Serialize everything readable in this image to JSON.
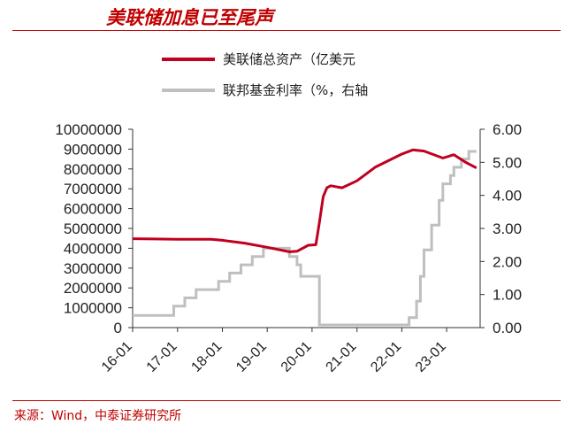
{
  "header": {
    "title": "美联储加息已至尾声"
  },
  "footer": {
    "source": "来源：Wind，中泰证券研究所"
  },
  "colors": {
    "assets": "#c00020",
    "rate": "#bfbfbf",
    "accent": "#c00000"
  },
  "chart_data": {
    "type": "line",
    "dual_axis": true,
    "legend_position": "top",
    "grid": false,
    "x_tick_labels": [
      "16-01",
      "17-01",
      "18-01",
      "19-01",
      "20-01",
      "21-01",
      "22-01",
      "23-01"
    ],
    "y_left": {
      "ylim": [
        0,
        10000000
      ],
      "tick_labels": [
        "0",
        "1000000",
        "2000000",
        "3000000",
        "4000000",
        "5000000",
        "6000000",
        "7000000",
        "8000000",
        "9000000",
        "10000000"
      ]
    },
    "y_right": {
      "ylim": [
        0,
        6
      ],
      "tick_labels": [
        "0.00",
        "1.00",
        "2.00",
        "3.00",
        "4.00",
        "5.00",
        "6.00"
      ]
    },
    "series": [
      {
        "name": "美联储总资产（亿美元",
        "axis": "left",
        "x": [
          "2016-01",
          "2016-07",
          "2017-01",
          "2017-07",
          "2017-10",
          "2018-01",
          "2018-07",
          "2019-01",
          "2019-07",
          "2019-09",
          "2019-12",
          "2020-02",
          "2020-03",
          "2020-04",
          "2020-05",
          "2020-06",
          "2020-09",
          "2021-01",
          "2021-06",
          "2022-01",
          "2022-04",
          "2022-07",
          "2022-12",
          "2023-03",
          "2023-06",
          "2023-09"
        ],
        "values": [
          4480000,
          4470000,
          4450000,
          4450000,
          4450000,
          4400000,
          4260000,
          4050000,
          3820000,
          3850000,
          4150000,
          4180000,
          5300000,
          6600000,
          7050000,
          7150000,
          7050000,
          7400000,
          8100000,
          8750000,
          8960000,
          8900000,
          8550000,
          8720000,
          8350000,
          8050000
        ]
      },
      {
        "name": "联邦基金利率（%，右轴",
        "axis": "right",
        "x": [
          "2016-01",
          "2016-12",
          "2016-12",
          "2017-03",
          "2017-03",
          "2017-06",
          "2017-06",
          "2017-12",
          "2017-12",
          "2018-03",
          "2018-03",
          "2018-06",
          "2018-06",
          "2018-09",
          "2018-09",
          "2018-12",
          "2018-12",
          "2019-07",
          "2019-07",
          "2019-09",
          "2019-09",
          "2019-10",
          "2019-10",
          "2020-03",
          "2020-03",
          "2022-03",
          "2022-03",
          "2022-05",
          "2022-05",
          "2022-06",
          "2022-06",
          "2022-07",
          "2022-07",
          "2022-09",
          "2022-09",
          "2022-11",
          "2022-11",
          "2022-12",
          "2022-12",
          "2023-02",
          "2023-02",
          "2023-03",
          "2023-03",
          "2023-05",
          "2023-05",
          "2023-07",
          "2023-07",
          "2023-09"
        ],
        "values": [
          0.37,
          0.37,
          0.65,
          0.65,
          0.9,
          0.9,
          1.15,
          1.15,
          1.4,
          1.4,
          1.65,
          1.65,
          1.9,
          1.9,
          2.15,
          2.15,
          2.4,
          2.4,
          2.15,
          2.15,
          1.9,
          1.9,
          1.55,
          1.55,
          0.08,
          0.08,
          0.3,
          0.3,
          0.8,
          0.8,
          1.55,
          1.55,
          2.35,
          2.35,
          3.1,
          3.1,
          3.85,
          3.85,
          4.35,
          4.35,
          4.6,
          4.6,
          4.85,
          4.85,
          5.1,
          5.1,
          5.33,
          5.33
        ]
      }
    ]
  }
}
